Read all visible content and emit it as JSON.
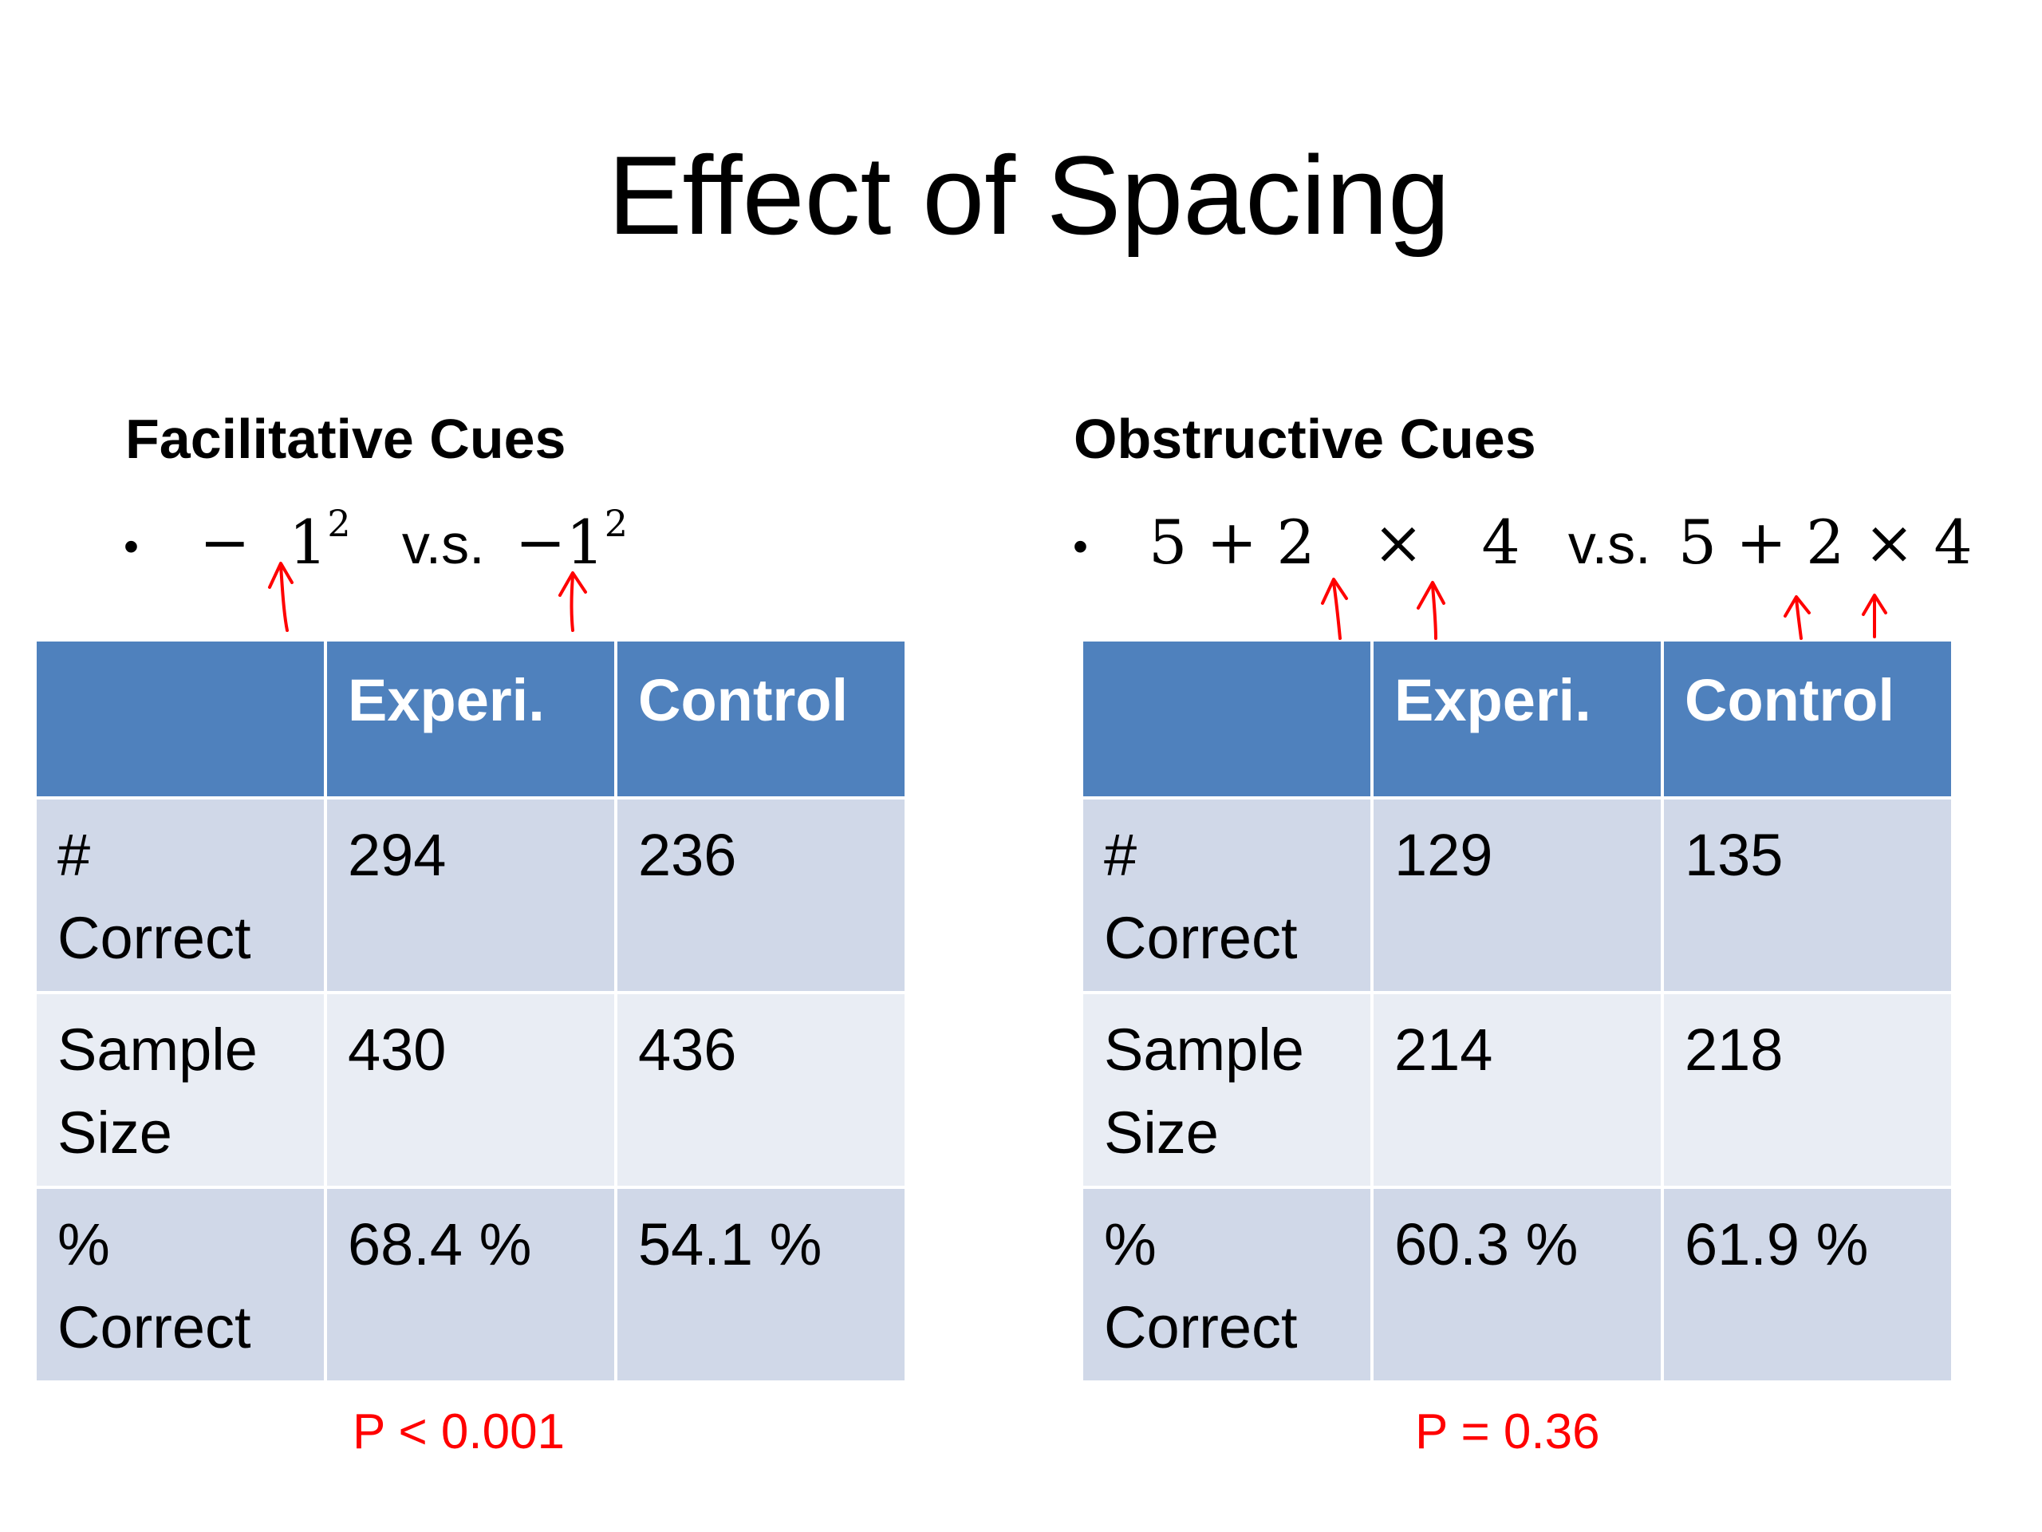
{
  "title": "Effect of Spacing",
  "facilitative": {
    "heading": "Facilitative Cues",
    "bullet": "•",
    "expr_left": "−  1",
    "expr_left_sup": "2",
    "vs": "v.s.",
    "expr_right": "−1",
    "expr_right_sup": "2",
    "table": {
      "headers": [
        "",
        "Experi.",
        "Control"
      ],
      "rows": [
        {
          "label_line1": "#",
          "label_line2": "Correct",
          "experi": "294",
          "control": "236"
        },
        {
          "label_line1": "Sample",
          "label_line2": "Size",
          "experi": "430",
          "control": "436"
        },
        {
          "label_line1": "%",
          "label_line2": "Correct",
          "experi": "68.4 %",
          "control": "54.1 %"
        }
      ]
    },
    "p_value": "P < 0.001"
  },
  "obstructive": {
    "heading": "Obstructive Cues",
    "bullet": "•",
    "expr_left": "5 + 2   ×   4",
    "vs": "v.s.",
    "expr_right": "5 + 2 × 4",
    "table": {
      "headers": [
        "",
        "Experi.",
        "Control"
      ],
      "rows": [
        {
          "label_line1": "#",
          "label_line2": "Correct",
          "experi": "129",
          "control": "135"
        },
        {
          "label_line1": "Sample",
          "label_line2": "Size",
          "experi": "214",
          "control": "218"
        },
        {
          "label_line1": "%",
          "label_line2": "Correct",
          "experi": "60.3 %",
          "control": "61.9 %"
        }
      ]
    },
    "p_value": "P = 0.36"
  },
  "colors": {
    "header_blue": "#4f81bd",
    "row_dark": "#d0d8e8",
    "row_light": "#e9edf4",
    "annotation_red": "#ff0000"
  }
}
